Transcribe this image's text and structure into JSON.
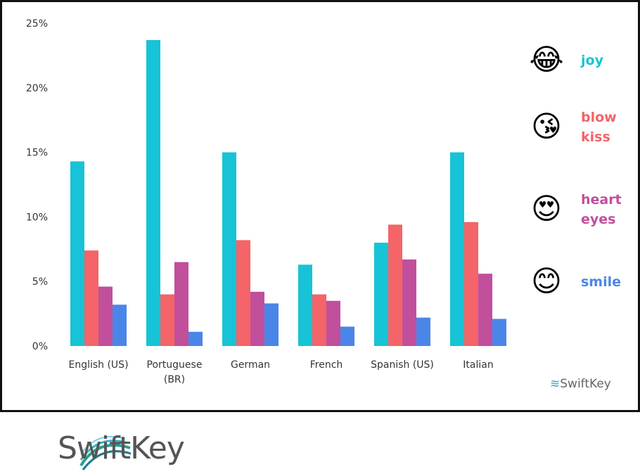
{
  "chart_data": {
    "type": "bar",
    "categories": [
      [
        "English (US)"
      ],
      [
        "Portuguese",
        "(BR)"
      ],
      [
        "German"
      ],
      [
        "French"
      ],
      [
        "Spanish (US)"
      ],
      [
        "Italian"
      ]
    ],
    "category_labels": [
      "English (US)",
      "Portuguese (BR)",
      "German",
      "French",
      "Spanish (US)",
      "Italian"
    ],
    "series": [
      {
        "name": "joy",
        "label_lines": [
          "joy"
        ],
        "emoji": "😂",
        "color": "#17c3d6",
        "values": [
          14.3,
          23.7,
          15.0,
          6.3,
          8.0,
          15.0
        ]
      },
      {
        "name": "blow kiss",
        "label_lines": [
          "blow",
          "kiss"
        ],
        "emoji": "😘",
        "color": "#f46468",
        "values": [
          7.4,
          4.0,
          8.2,
          4.0,
          9.4,
          9.6
        ]
      },
      {
        "name": "heart eyes",
        "label_lines": [
          "heart",
          "eyes"
        ],
        "emoji": "😍",
        "color": "#c14f9c",
        "values": [
          4.6,
          6.5,
          4.2,
          3.5,
          6.7,
          5.6
        ]
      },
      {
        "name": "smile",
        "label_lines": [
          "smile"
        ],
        "emoji": "😊",
        "color": "#4a86e8",
        "values": [
          3.2,
          1.1,
          3.3,
          1.5,
          2.2,
          2.1
        ]
      }
    ],
    "yticks": [
      "0%",
      "5%",
      "10%",
      "15%",
      "20%",
      "25%"
    ],
    "ylim": [
      0,
      25
    ],
    "grid": false,
    "legend": "right",
    "title": "",
    "xlabel": "",
    "ylabel": ""
  },
  "branding": {
    "small_logo": "SwiftKey",
    "logo": "SwiftKey"
  }
}
